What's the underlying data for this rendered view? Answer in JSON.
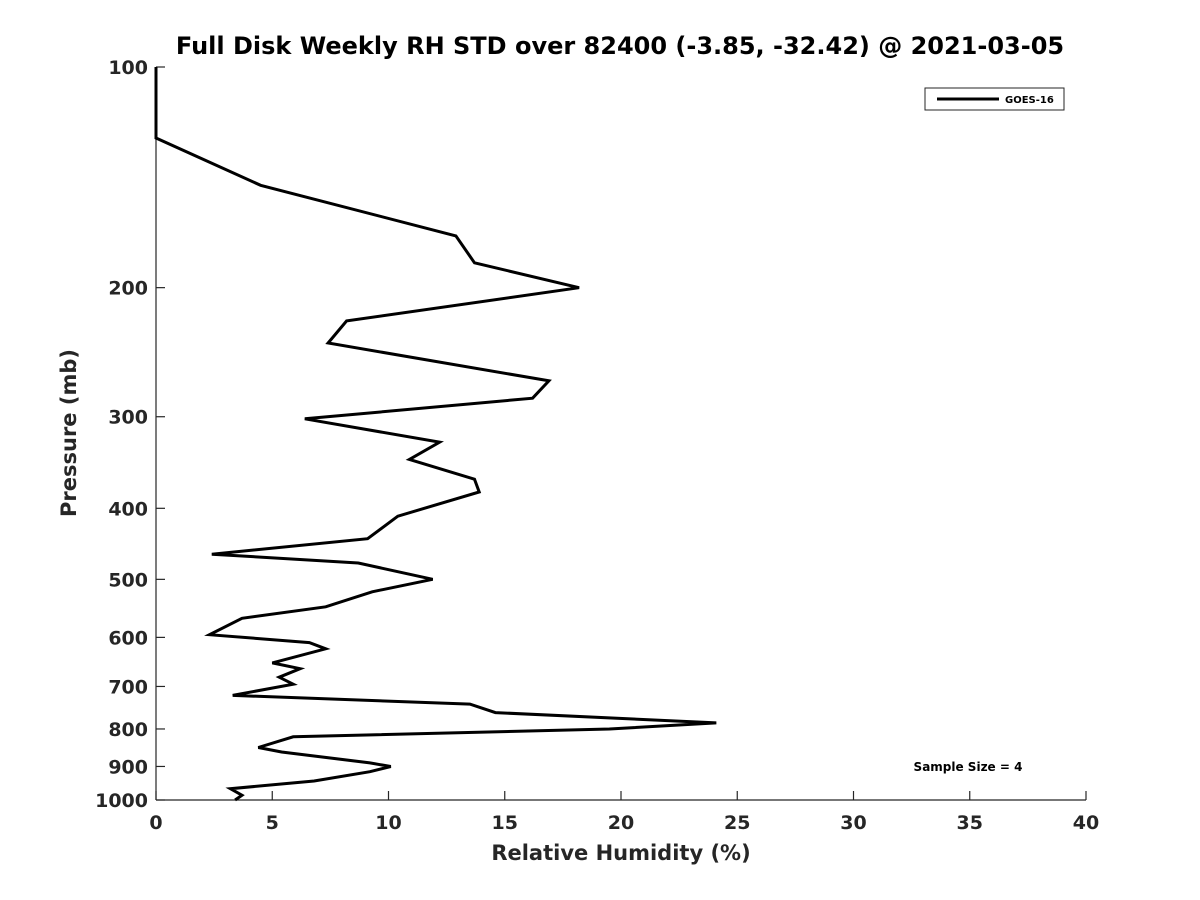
{
  "chart_data": {
    "type": "line",
    "title": "Full Disk Weekly RH STD over 82400 (-3.85, -32.42) @ 2021-03-05",
    "xlabel": "Relative Humidity (%)",
    "ylabel": "Pressure (mb)",
    "xlim": [
      0,
      40
    ],
    "ylim": [
      100,
      1000
    ],
    "yscale": "log",
    "yaxis_reversed": true,
    "xticks": [
      0,
      5,
      10,
      15,
      20,
      25,
      30,
      35,
      40
    ],
    "xtick_labels": [
      "0",
      "5",
      "10",
      "15",
      "20",
      "25",
      "30",
      "35",
      "40"
    ],
    "yticks": [
      100,
      200,
      300,
      400,
      500,
      600,
      700,
      800,
      900,
      1000
    ],
    "ytick_labels": [
      "100",
      "200",
      "300",
      "400",
      "500",
      "600",
      "700",
      "800",
      "900",
      "1000"
    ],
    "grid": false,
    "legend_position": "top-right",
    "annotation": "Sample Size = 4",
    "series": [
      {
        "name": "GOES-16",
        "color": "#000000",
        "x": [
          0,
          0,
          4.5,
          12.9,
          13.7,
          18.2,
          8.2,
          7.4,
          16.9,
          16.2,
          6.4,
          12.2,
          10.9,
          13.7,
          13.9,
          10.4,
          9.1,
          2.4,
          8.7,
          11.9,
          9.3,
          7.3,
          3.7,
          2.3,
          6.6,
          7.3,
          5.0,
          6.2,
          5.3,
          5.9,
          3.3,
          13.5,
          14.6,
          24.1,
          19.5,
          5.9,
          4.4,
          5.4,
          9.2,
          10.1,
          9.2,
          6.8,
          3.2,
          3.7,
          3.4
        ],
        "y": [
          100,
          125,
          145,
          170,
          185,
          200,
          222,
          238,
          268,
          283,
          302,
          325,
          343,
          365,
          380,
          410,
          440,
          462,
          475,
          500,
          520,
          545,
          565,
          595,
          610,
          622,
          650,
          662,
          680,
          695,
          720,
          740,
          760,
          785,
          800,
          820,
          848,
          860,
          890,
          900,
          915,
          942,
          965,
          985,
          1000
        ]
      }
    ]
  }
}
